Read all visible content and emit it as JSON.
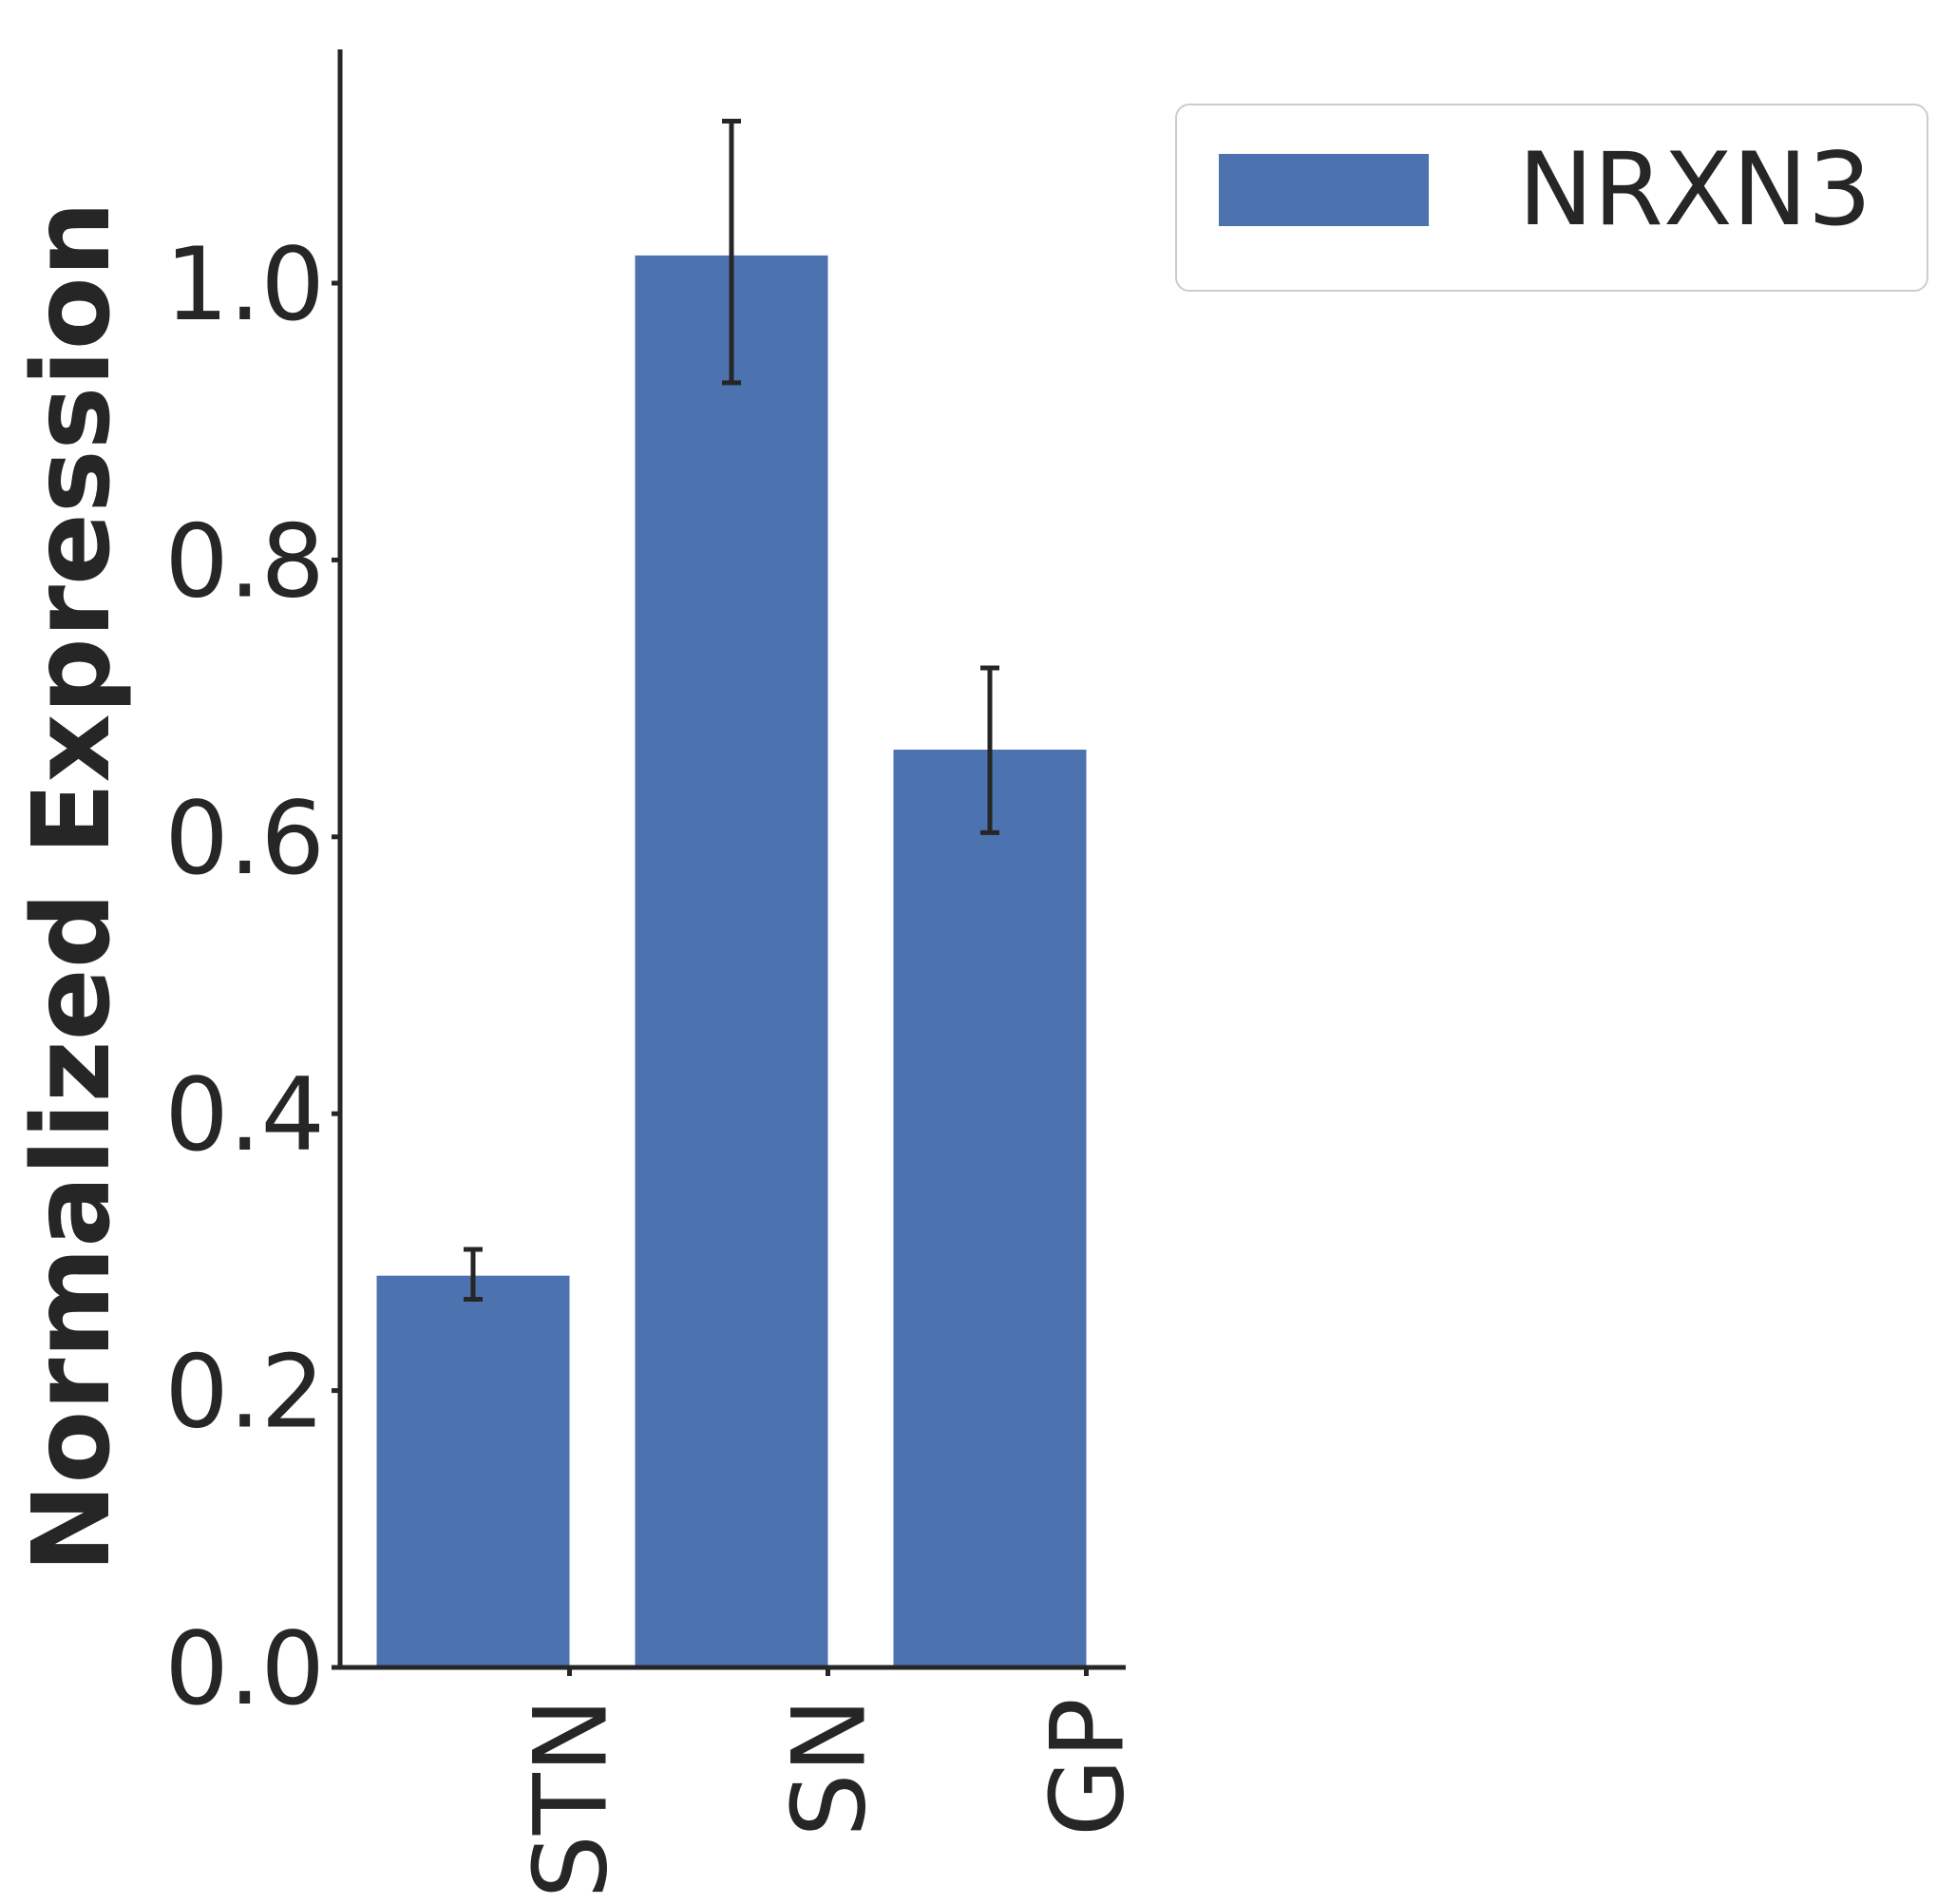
{
  "chart_data": {
    "type": "bar",
    "categories": [
      "STN",
      "SN",
      "GP"
    ],
    "series": [
      {
        "name": "NRXN3",
        "values": [
          0.283,
          1.02,
          0.663
        ],
        "error_low": [
          0.266,
          0.928,
          0.603
        ],
        "error_high": [
          0.302,
          1.117,
          0.722
        ]
      }
    ],
    "xlabel": "",
    "ylabel": "Normalized Expression",
    "ylim": [
      0,
      1.17
    ],
    "yticks": [
      0.0,
      0.2,
      0.4,
      0.6,
      0.8,
      1.0
    ],
    "ytick_labels": [
      "0.0",
      "0.2",
      "0.4",
      "0.6",
      "0.8",
      "1.0"
    ],
    "grid": false,
    "legend_position": "top-right, outside plot",
    "colors": {
      "bar": "#4c72b0",
      "axis": "#262626",
      "errorbar": "#262626",
      "legend_border": "#cccccc"
    }
  }
}
